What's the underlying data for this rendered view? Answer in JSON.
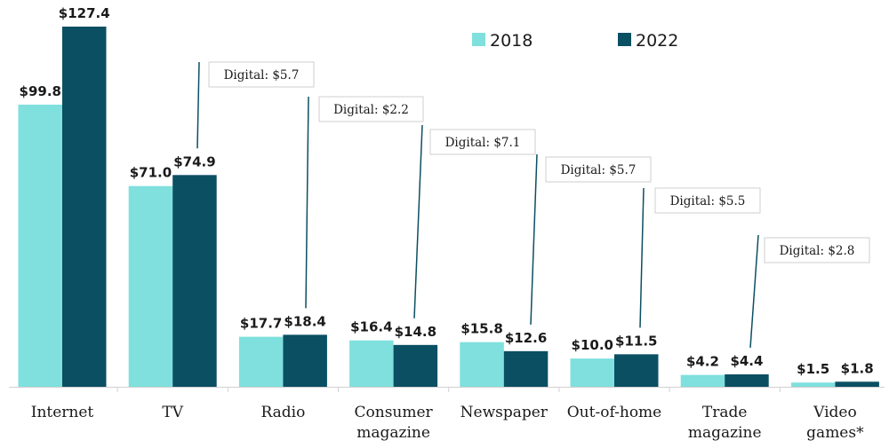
{
  "chart_data": {
    "type": "bar",
    "categories": [
      [
        "Internet"
      ],
      [
        "TV"
      ],
      [
        "Radio"
      ],
      [
        "Consumer",
        "magazine"
      ],
      [
        "Newspaper"
      ],
      [
        "Out-of-home"
      ],
      [
        "Trade",
        "magazine"
      ],
      [
        "Video",
        "games*"
      ]
    ],
    "series": [
      {
        "name": "2018",
        "color": "#7fe0dd",
        "values": [
          99.8,
          71.0,
          17.7,
          16.4,
          15.8,
          10.0,
          4.2,
          1.5
        ],
        "labels": [
          "$99.8",
          "$71.0",
          "$17.7",
          "$16.4",
          "$15.8",
          "$10.0",
          "$4.2",
          "$1.5"
        ]
      },
      {
        "name": "2022",
        "color": "#0b4f63",
        "values": [
          127.4,
          74.9,
          18.4,
          14.8,
          12.6,
          11.5,
          4.4,
          1.8
        ],
        "labels": [
          "$127.4",
          "$74.9",
          "$18.4",
          "$14.8",
          "$12.6",
          "$11.5",
          "$4.4",
          "$1.8"
        ]
      }
    ],
    "annotations": [
      {
        "category_index": 1,
        "text": "Digital: $5.7"
      },
      {
        "category_index": 2,
        "text": "Digital: $2.2"
      },
      {
        "category_index": 3,
        "text": "Digital: $7.1"
      },
      {
        "category_index": 4,
        "text": "Digital: $5.7"
      },
      {
        "category_index": 5,
        "text": "Digital: $5.5"
      },
      {
        "category_index": 6,
        "text": "Digital: $2.8"
      }
    ],
    "ylim": [
      0,
      127.4
    ],
    "legend_position": "top-right",
    "grid": false
  }
}
